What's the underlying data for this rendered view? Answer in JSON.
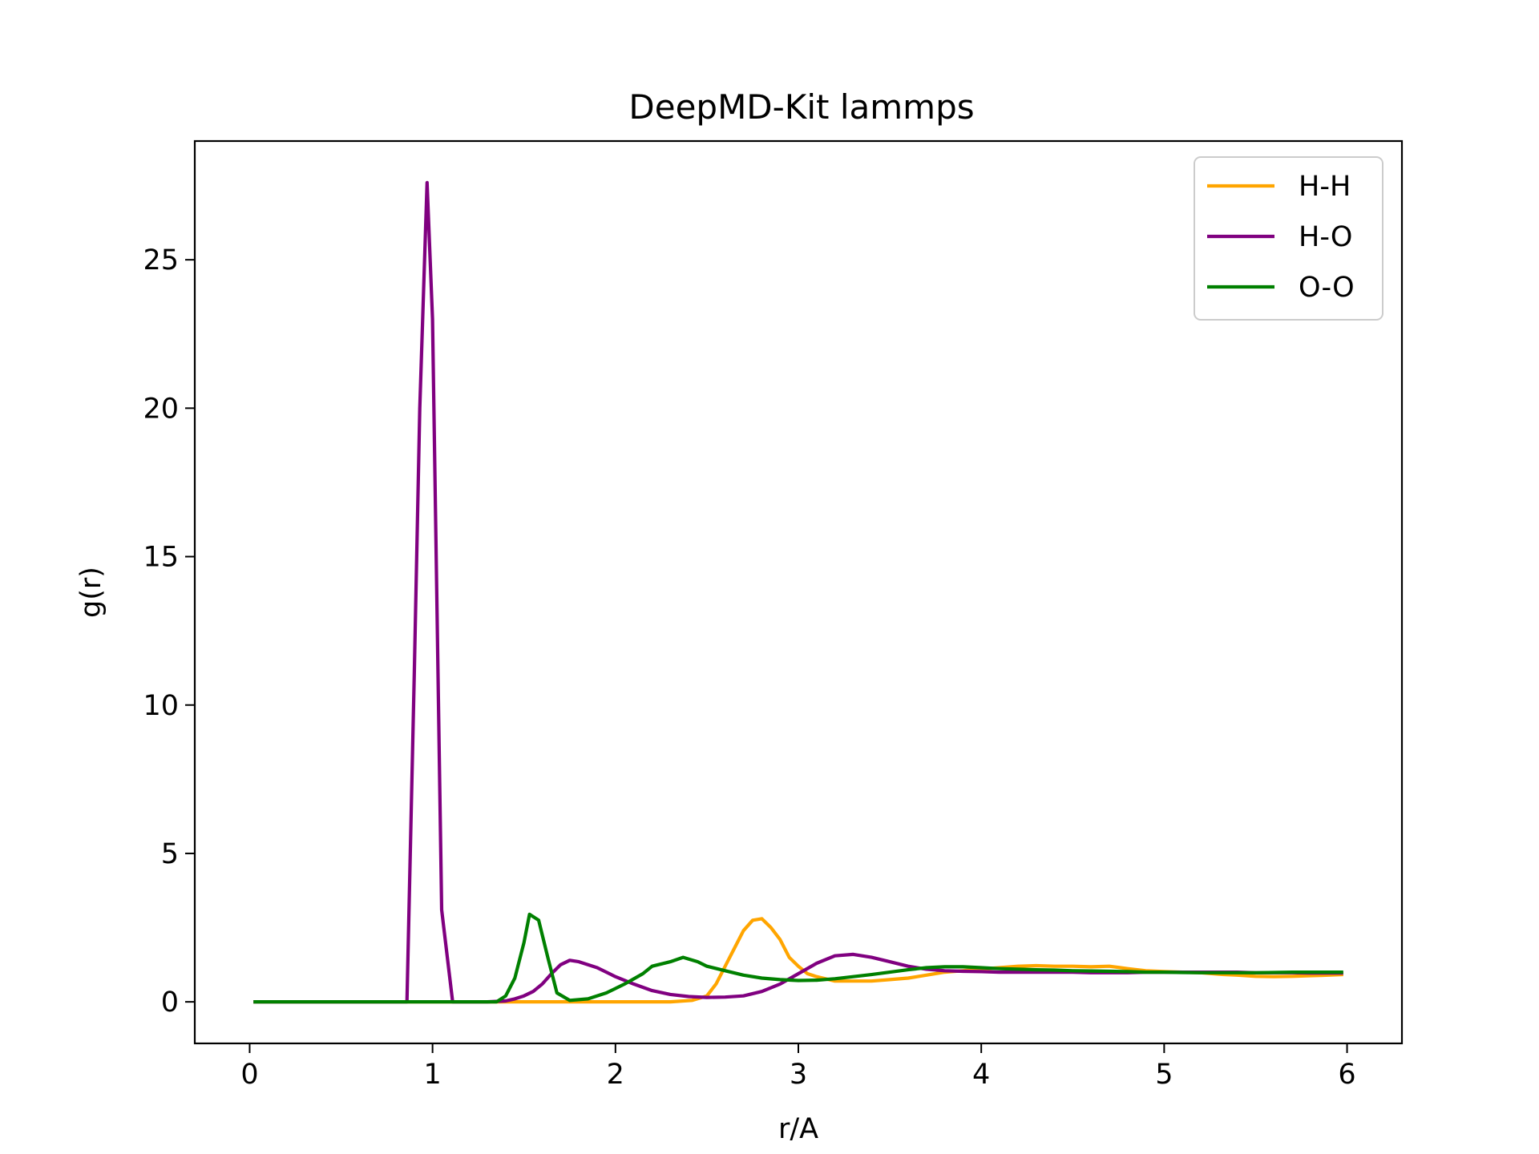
{
  "chart_data": {
    "type": "line",
    "title": "DeepMD-Kit lammps",
    "xlabel": "r/A",
    "ylabel": "g(r)",
    "xlim": [
      -0.3,
      6.3
    ],
    "ylim": [
      -1.4,
      29.0
    ],
    "xticks": [
      0,
      1,
      2,
      3,
      4,
      5,
      6
    ],
    "yticks": [
      0,
      5,
      10,
      15,
      20,
      25
    ],
    "grid": false,
    "legend_position": "top-right",
    "series": [
      {
        "name": "H-H",
        "color": "#FFA500",
        "points": [
          [
            0.03,
            0
          ],
          [
            0.5,
            0
          ],
          [
            1.0,
            0
          ],
          [
            1.5,
            0
          ],
          [
            2.0,
            0
          ],
          [
            2.3,
            0
          ],
          [
            2.42,
            0.05
          ],
          [
            2.5,
            0.2
          ],
          [
            2.55,
            0.6
          ],
          [
            2.6,
            1.2
          ],
          [
            2.65,
            1.8
          ],
          [
            2.7,
            2.4
          ],
          [
            2.75,
            2.75
          ],
          [
            2.8,
            2.8
          ],
          [
            2.85,
            2.5
          ],
          [
            2.9,
            2.1
          ],
          [
            2.95,
            1.5
          ],
          [
            3.0,
            1.2
          ],
          [
            3.05,
            0.95
          ],
          [
            3.1,
            0.85
          ],
          [
            3.2,
            0.7
          ],
          [
            3.3,
            0.7
          ],
          [
            3.4,
            0.7
          ],
          [
            3.5,
            0.75
          ],
          [
            3.6,
            0.8
          ],
          [
            3.7,
            0.9
          ],
          [
            3.8,
            1.0
          ],
          [
            3.9,
            1.05
          ],
          [
            4.0,
            1.1
          ],
          [
            4.1,
            1.15
          ],
          [
            4.2,
            1.2
          ],
          [
            4.3,
            1.22
          ],
          [
            4.4,
            1.2
          ],
          [
            4.5,
            1.2
          ],
          [
            4.6,
            1.18
          ],
          [
            4.7,
            1.2
          ],
          [
            4.8,
            1.12
          ],
          [
            4.9,
            1.05
          ],
          [
            5.0,
            1.02
          ],
          [
            5.1,
            1.0
          ],
          [
            5.2,
            0.98
          ],
          [
            5.3,
            0.93
          ],
          [
            5.4,
            0.9
          ],
          [
            5.5,
            0.86
          ],
          [
            5.6,
            0.85
          ],
          [
            5.7,
            0.86
          ],
          [
            5.8,
            0.88
          ],
          [
            5.9,
            0.9
          ],
          [
            5.97,
            0.92
          ]
        ]
      },
      {
        "name": "H-O",
        "color": "#800080",
        "points": [
          [
            0.03,
            0
          ],
          [
            0.5,
            0
          ],
          [
            0.86,
            0
          ],
          [
            0.9,
            11.0
          ],
          [
            0.93,
            20.0
          ],
          [
            0.97,
            27.6
          ],
          [
            1.0,
            23.0
          ],
          [
            1.05,
            3.1
          ],
          [
            1.11,
            0
          ],
          [
            1.3,
            0
          ],
          [
            1.4,
            0.03
          ],
          [
            1.45,
            0.1
          ],
          [
            1.5,
            0.2
          ],
          [
            1.55,
            0.35
          ],
          [
            1.6,
            0.6
          ],
          [
            1.65,
            0.95
          ],
          [
            1.7,
            1.25
          ],
          [
            1.75,
            1.4
          ],
          [
            1.8,
            1.35
          ],
          [
            1.9,
            1.15
          ],
          [
            2.0,
            0.85
          ],
          [
            2.1,
            0.6
          ],
          [
            2.2,
            0.38
          ],
          [
            2.3,
            0.25
          ],
          [
            2.4,
            0.18
          ],
          [
            2.5,
            0.15
          ],
          [
            2.6,
            0.16
          ],
          [
            2.7,
            0.2
          ],
          [
            2.8,
            0.35
          ],
          [
            2.9,
            0.6
          ],
          [
            3.0,
            0.95
          ],
          [
            3.1,
            1.3
          ],
          [
            3.2,
            1.55
          ],
          [
            3.3,
            1.6
          ],
          [
            3.4,
            1.5
          ],
          [
            3.5,
            1.35
          ],
          [
            3.6,
            1.2
          ],
          [
            3.7,
            1.1
          ],
          [
            3.8,
            1.05
          ],
          [
            3.9,
            1.03
          ],
          [
            4.0,
            1.02
          ],
          [
            4.1,
            1.0
          ],
          [
            4.2,
            1.0
          ],
          [
            4.3,
            1.0
          ],
          [
            4.4,
            1.0
          ],
          [
            4.5,
            1.0
          ],
          [
            4.6,
            0.98
          ],
          [
            4.7,
            0.98
          ],
          [
            4.8,
            0.98
          ],
          [
            4.9,
            1.0
          ],
          [
            5.0,
            1.0
          ],
          [
            5.1,
            1.0
          ],
          [
            5.2,
            1.0
          ],
          [
            5.3,
            1.0
          ],
          [
            5.4,
            1.0
          ],
          [
            5.5,
            0.98
          ],
          [
            5.6,
            0.98
          ],
          [
            5.7,
            0.98
          ],
          [
            5.8,
            0.97
          ],
          [
            5.9,
            0.97
          ],
          [
            5.97,
            0.97
          ]
        ]
      },
      {
        "name": "O-O",
        "color": "#008000",
        "points": [
          [
            0.03,
            0
          ],
          [
            0.5,
            0
          ],
          [
            1.0,
            0
          ],
          [
            1.35,
            0
          ],
          [
            1.4,
            0.2
          ],
          [
            1.45,
            0.8
          ],
          [
            1.5,
            2.0
          ],
          [
            1.53,
            2.95
          ],
          [
            1.58,
            2.75
          ],
          [
            1.63,
            1.5
          ],
          [
            1.68,
            0.3
          ],
          [
            1.75,
            0.05
          ],
          [
            1.85,
            0.1
          ],
          [
            1.95,
            0.3
          ],
          [
            2.05,
            0.6
          ],
          [
            2.15,
            0.95
          ],
          [
            2.2,
            1.2
          ],
          [
            2.3,
            1.35
          ],
          [
            2.37,
            1.5
          ],
          [
            2.45,
            1.35
          ],
          [
            2.5,
            1.2
          ],
          [
            2.6,
            1.05
          ],
          [
            2.7,
            0.9
          ],
          [
            2.8,
            0.8
          ],
          [
            2.9,
            0.75
          ],
          [
            3.0,
            0.72
          ],
          [
            3.1,
            0.73
          ],
          [
            3.2,
            0.78
          ],
          [
            3.3,
            0.85
          ],
          [
            3.4,
            0.92
          ],
          [
            3.5,
            1.0
          ],
          [
            3.6,
            1.08
          ],
          [
            3.7,
            1.15
          ],
          [
            3.8,
            1.18
          ],
          [
            3.9,
            1.18
          ],
          [
            4.0,
            1.15
          ],
          [
            4.1,
            1.12
          ],
          [
            4.2,
            1.1
          ],
          [
            4.3,
            1.08
          ],
          [
            4.4,
            1.07
          ],
          [
            4.5,
            1.05
          ],
          [
            4.6,
            1.04
          ],
          [
            4.7,
            1.03
          ],
          [
            4.8,
            1.02
          ],
          [
            4.9,
            1.0
          ],
          [
            5.0,
            1.0
          ],
          [
            5.1,
            0.99
          ],
          [
            5.2,
            0.98
          ],
          [
            5.3,
            0.98
          ],
          [
            5.4,
            0.98
          ],
          [
            5.5,
            0.98
          ],
          [
            5.6,
            0.99
          ],
          [
            5.7,
            1.0
          ],
          [
            5.8,
            1.0
          ],
          [
            5.9,
            1.0
          ],
          [
            5.97,
            1.0
          ]
        ]
      }
    ]
  }
}
